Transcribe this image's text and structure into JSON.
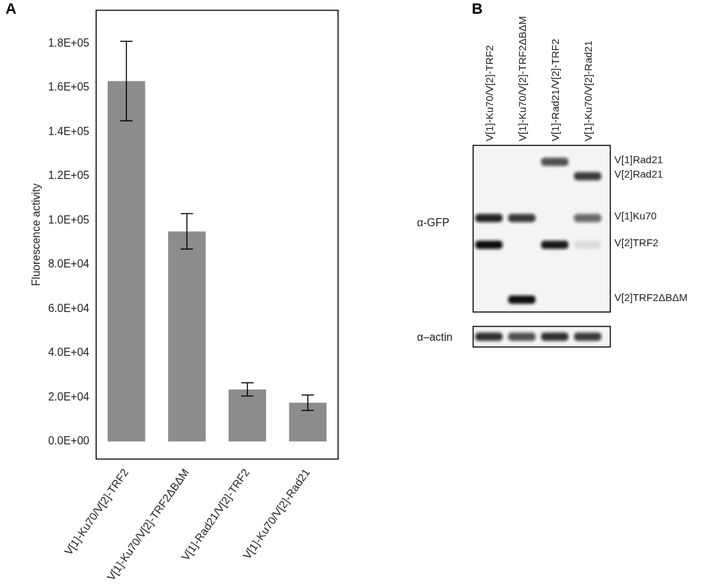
{
  "chart_data": {
    "type": "bar",
    "annotations": [
      "A"
    ],
    "y_label": "Fluorescence activity",
    "categories": [
      "V[1]-Ku70/V[2]-TRF2",
      "V[1]-Ku70/V[2]-TRF2ΔBΔM",
      "V[1]-Rad21/V[2]-TRF2",
      "V[1]-Ku70/V[2]-Rad21"
    ],
    "values": [
      163000,
      95000,
      23500,
      17500
    ],
    "errors": [
      18000,
      8000,
      3000,
      3500
    ],
    "color": "#8c8c8c",
    "ylim": [
      -8000,
      195000
    ],
    "yticks": [
      {
        "value": 0,
        "label": "0.0E+00"
      },
      {
        "value": 20000,
        "label": "2.0E+04"
      },
      {
        "value": 40000,
        "label": "4.0E+04"
      },
      {
        "value": 60000,
        "label": "6.0E+04"
      },
      {
        "value": 80000,
        "label": "8.0E+04"
      },
      {
        "value": 100000,
        "label": "1.0E+05"
      },
      {
        "value": 120000,
        "label": "1.2E+05"
      },
      {
        "value": 140000,
        "label": "1.4E+05"
      },
      {
        "value": 160000,
        "label": "1.6E+05"
      },
      {
        "value": 180000,
        "label": "1.8E+05"
      }
    ],
    "grid": false
  },
  "blot": {
    "panel_label": "B",
    "lanes": [
      "V[1]-Ku70/V[2]-TRF2",
      "V[1]-Ku70/V[2]-TRF2ΔBΔM",
      "V[1]-Rad21/V[2]-TRF2",
      "V[1]-Ku70/V[2]-Rad21"
    ],
    "gfp_antibody": "α-GFP",
    "gfp_bands": [
      {
        "label": "V[1]Rad21",
        "intensity": [
          0,
          0,
          0.7,
          0
        ]
      },
      {
        "label": "V[2]Rad21",
        "intensity": [
          0,
          0,
          0,
          0.8
        ]
      },
      {
        "label": "V[1]Ku70",
        "intensity": [
          0.9,
          0.8,
          0,
          0.6
        ]
      },
      {
        "label": "V[2]TRF2",
        "intensity": [
          1,
          0,
          0.95,
          0.1
        ]
      },
      {
        "label": "V[2]TRF2ΔBΔM",
        "intensity": [
          0,
          1,
          0,
          0
        ]
      }
    ],
    "actin_antibody": "α–actin",
    "actin_intensity": [
      0.85,
      0.7,
      0.85,
      0.8
    ]
  }
}
